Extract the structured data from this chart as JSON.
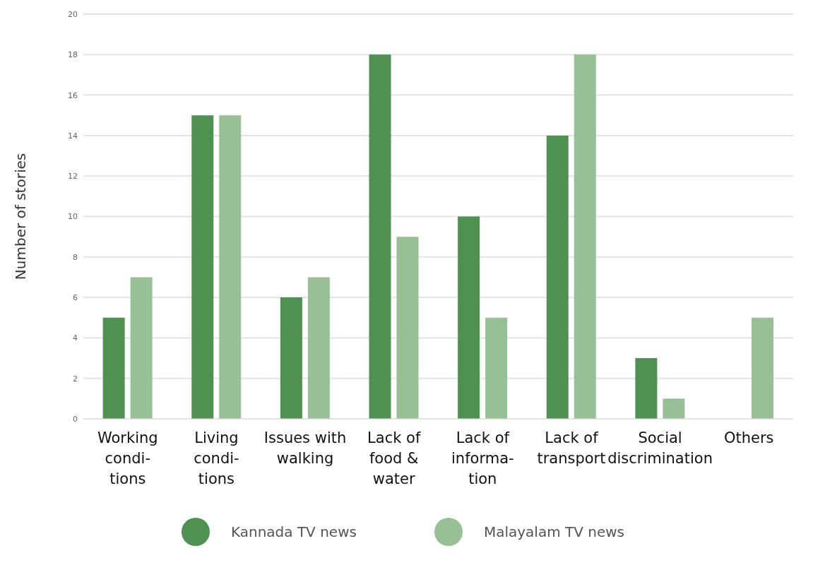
{
  "chart_data": {
    "type": "bar",
    "ylabel": "Number of stories",
    "categories": [
      "Working\ncondi-\ntions",
      "Living\ncondi-\ntions",
      "Issues with\nwalking",
      "Lack of\nfood &\nwater",
      "Lack of\ninforma-\ntion",
      "Lack of\ntransport",
      "Social\ndiscrimination",
      "Others"
    ],
    "series": [
      {
        "name": "Kannada TV news",
        "color": "#4e9150",
        "values": [
          5,
          15,
          6,
          18,
          10,
          14,
          3,
          0
        ]
      },
      {
        "name": "Malayalam TV news",
        "color": "#97c095",
        "values": [
          7,
          15,
          7,
          9,
          5,
          18,
          1,
          5
        ]
      }
    ],
    "ylim": [
      0,
      20
    ],
    "yticks": [
      0,
      2,
      4,
      6,
      8,
      10,
      12,
      14,
      16,
      18,
      20
    ],
    "grid": "y",
    "legend": "bottom"
  }
}
